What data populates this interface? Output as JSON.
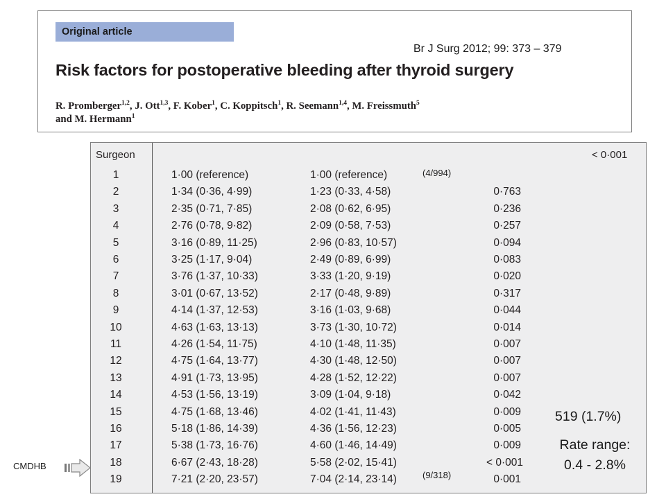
{
  "header": {
    "label": "Original article",
    "citation": "Br J Surg 2012; 99: 373 – 379",
    "title": "Risk factors for postoperative bleeding after thyroid surgery",
    "authors": [
      {
        "name": "R. Promberger",
        "aff": "1,2",
        "sep": ", "
      },
      {
        "name": "J. Ott",
        "aff": "1,3",
        "sep": ", "
      },
      {
        "name": "F. Kober",
        "aff": "1",
        "sep": ", "
      },
      {
        "name": "C. Koppitsch",
        "aff": "1",
        "sep": ", "
      },
      {
        "name": "R. Seemann",
        "aff": "1,4",
        "sep": ", "
      },
      {
        "name": "M. Freissmuth",
        "aff": "5",
        "sep": " "
      },
      {
        "name": "and M. Hermann",
        "aff": "1",
        "sep": ""
      }
    ]
  },
  "table": {
    "col_header": "Surgeon",
    "p_overall": "< 0·001",
    "rows": [
      {
        "surgeon": "1",
        "or1": "1·00 (reference)",
        "or2": "1·00 (reference)",
        "p": ""
      },
      {
        "surgeon": "2",
        "or1": "1·34 (0·36, 4·99)",
        "or2": "1·23 (0·33, 4·58)",
        "p": "0·763"
      },
      {
        "surgeon": "3",
        "or1": "2·35 (0·71, 7·85)",
        "or2": "2·08 (0·62, 6·95)",
        "p": "0·236"
      },
      {
        "surgeon": "4",
        "or1": "2·76 (0·78, 9·82)",
        "or2": "2·09 (0·58, 7·53)",
        "p": "0·257"
      },
      {
        "surgeon": "5",
        "or1": "3·16 (0·89, 11·25)",
        "or2": "2·96 (0·83, 10·57)",
        "p": "0·094"
      },
      {
        "surgeon": "6",
        "or1": "3·25 (1·17, 9·04)",
        "or2": "2·49 (0·89, 6·99)",
        "p": "0·083"
      },
      {
        "surgeon": "7",
        "or1": "3·76 (1·37, 10·33)",
        "or2": "3·33 (1·20, 9·19)",
        "p": "0·020"
      },
      {
        "surgeon": "8",
        "or1": "3·01 (0·67, 13·52)",
        "or2": "2·17 (0·48, 9·89)",
        "p": "0·317"
      },
      {
        "surgeon": "9",
        "or1": "4·14 (1·37, 12·53)",
        "or2": "3·16 (1·03, 9·68)",
        "p": "0·044"
      },
      {
        "surgeon": "10",
        "or1": "4·63 (1·63, 13·13)",
        "or2": "3·73 (1·30, 10·72)",
        "p": "0·014"
      },
      {
        "surgeon": "11",
        "or1": "4·26 (1·54, 11·75)",
        "or2": "4·10 (1·48, 11·35)",
        "p": "0·007"
      },
      {
        "surgeon": "12",
        "or1": "4·75 (1·64, 13·77)",
        "or2": "4·30 (1·48, 12·50)",
        "p": "0·007"
      },
      {
        "surgeon": "13",
        "or1": "4·91 (1·73, 13·95)",
        "or2": "4·28 (1·52, 12·22)",
        "p": "0·007"
      },
      {
        "surgeon": "14",
        "or1": "4·53 (1·56, 13·19)",
        "or2": "3·09 (1·04, 9·18)",
        "p": "0·042"
      },
      {
        "surgeon": "15",
        "or1": "4·75 (1·68, 13·46)",
        "or2": "4·02 (1·41, 11·43)",
        "p": "0·009"
      },
      {
        "surgeon": "16",
        "or1": "5·18 (1·86, 14·39)",
        "or2": "4·36 (1·56, 12·23)",
        "p": "0·005"
      },
      {
        "surgeon": "17",
        "or1": "5·38 (1·73, 16·76)",
        "or2": "4·60 (1·46, 14·49)",
        "p": "0·009"
      },
      {
        "surgeon": "18",
        "or1": "6·67 (2·43, 18·28)",
        "or2": "5·58 (2·02, 15·41)",
        "p": "< 0·001"
      },
      {
        "surgeon": "19",
        "or1": "7·21 (2·20, 23·57)",
        "or2": "7·04 (2·14, 23·14)",
        "p": "0·001"
      }
    ]
  },
  "annotations": {
    "top_rate": "(4/994)",
    "bottom_rate": "(9/318)",
    "total": "519 (1.7%)",
    "rate_range_label": "Rate range:",
    "rate_range_value": "0.4 - 2.8%",
    "arrow_label": "CMDHB"
  }
}
